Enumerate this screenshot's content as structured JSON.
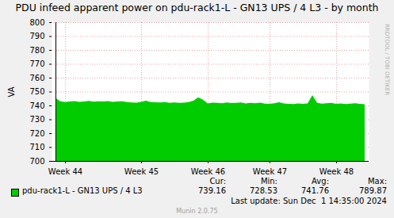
{
  "chart_data": {
    "type": "area",
    "title": "PDU infeed apparent power on pdu-rack1-L - GN13 UPS / 4 L3 - by month",
    "y_label": "VA",
    "categories": [
      null,
      null,
      "Week 44",
      null,
      null,
      null,
      null,
      null,
      null,
      null,
      null,
      null,
      null,
      null,
      null,
      null,
      null,
      null,
      "Week 45",
      null,
      null,
      null,
      null,
      null,
      null,
      null,
      null,
      null,
      null,
      null,
      null,
      null,
      "Week 46",
      null,
      null,
      null,
      null,
      null,
      null,
      null,
      null,
      null,
      null,
      null,
      null,
      "Week 47",
      null,
      null,
      null,
      null,
      null,
      null,
      null,
      null,
      null,
      null,
      null,
      null,
      null,
      "Week 48",
      null,
      null,
      null,
      null,
      null,
      null
    ],
    "series": [
      {
        "name": "pdu-rack1-L - GN13 UPS / 4 L3",
        "color": "#00cc00",
        "values": [
          745.5,
          743,
          742.5,
          742.8,
          743.1,
          742.6,
          742.9,
          743.3,
          742.7,
          743.0,
          742.8,
          743.2,
          742.6,
          742.9,
          743.0,
          742.4,
          742.2,
          742.0,
          742.6,
          743.4,
          742.5,
          742.3,
          742.1,
          742.4,
          741.9,
          742.2,
          741.8,
          742.0,
          742.5,
          743.5,
          745.8,
          744.2,
          741.5,
          742.0,
          741.8,
          741.6,
          742.1,
          741.7,
          741.9,
          742.2,
          741.5,
          741.8,
          741.6,
          742.0,
          741.3,
          741.1,
          741.6,
          742.3,
          741.5,
          741.2,
          741.0,
          741.4,
          741.2,
          741.5,
          747.5,
          741.8,
          741.3,
          741.6,
          741.9,
          741.2,
          741.4,
          741.0,
          741.3,
          741.6,
          741.2,
          740.8
        ]
      }
    ],
    "ylim": [
      700,
      800
    ],
    "yticks": [
      700,
      710,
      720,
      730,
      740,
      750,
      760,
      770,
      780,
      790,
      800
    ],
    "grid": true,
    "legend": "bottom",
    "legend_stats": {
      "labels": [
        "Cur:",
        "Min:",
        "Avg:",
        "Max:"
      ],
      "values": [
        739.16,
        728.53,
        741.76,
        789.87
      ]
    },
    "footer": "Last update: Sun Dec  1 14:35:00 2024",
    "credit": "Munin 2.0.75",
    "watermark": "RRDTOOL / TOBI OETIKER"
  }
}
